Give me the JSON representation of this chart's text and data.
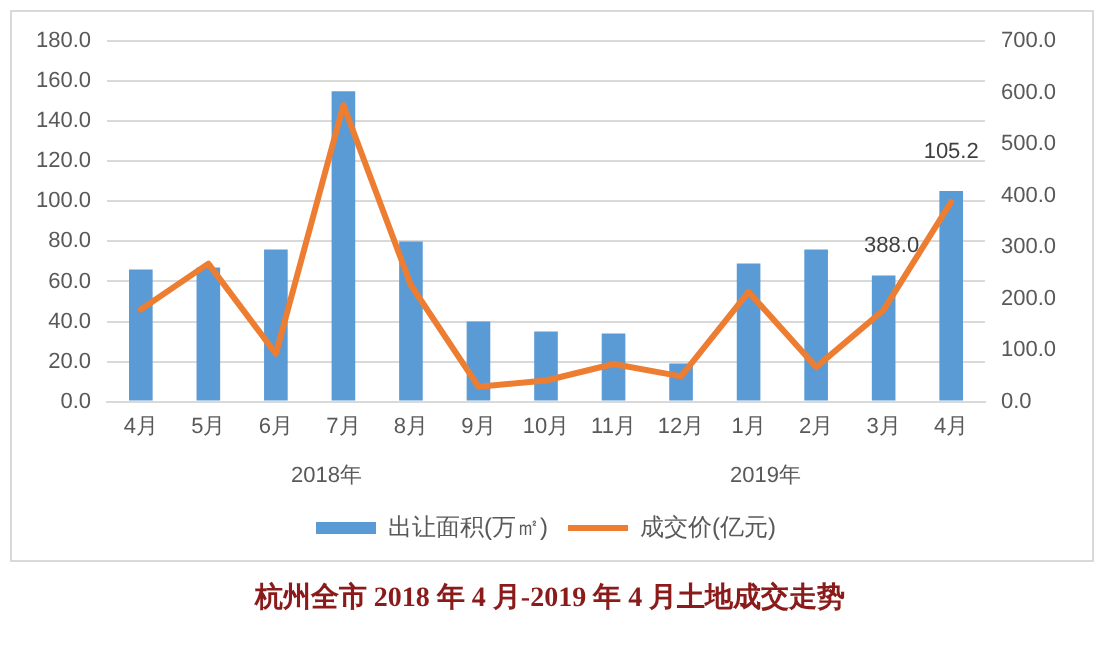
{
  "chart_data": {
    "type": "bar",
    "title": "杭州全市 2018 年 4 月-2019 年 4 月土地成交走势",
    "categories": [
      "4月",
      "5月",
      "6月",
      "7月",
      "8月",
      "9月",
      "10月",
      "11月",
      "12月",
      "1月",
      "2月",
      "3月",
      "4月"
    ],
    "series": [
      {
        "name": "出让面积(万㎡)",
        "color": "#5b9bd5",
        "values": [
          66,
          67,
          76,
          155,
          80,
          40,
          35,
          34,
          19,
          69,
          76,
          63,
          105.2
        ],
        "value_labels": [
          null,
          null,
          null,
          null,
          null,
          null,
          null,
          null,
          null,
          null,
          null,
          null,
          "105.2"
        ]
      },
      {
        "name": "成交价(亿元)",
        "type": "line",
        "axis": "y2",
        "color": "#ed7d31",
        "values": [
          179,
          268,
          93,
          576,
          226,
          29,
          41,
          73,
          49,
          213,
          67,
          178,
          388.0
        ],
        "value_labels": [
          null,
          null,
          null,
          null,
          null,
          null,
          null,
          null,
          null,
          null,
          null,
          null,
          "388.0"
        ]
      }
    ],
    "ylim": [
      0,
      180
    ],
    "yticks": [
      {
        "value": 0,
        "label": "0.0"
      },
      {
        "value": 20,
        "label": "20.0"
      },
      {
        "value": 40,
        "label": "40.0"
      },
      {
        "value": 60,
        "label": "60.0"
      },
      {
        "value": 80,
        "label": "80.0"
      },
      {
        "value": 100,
        "label": "100.0"
      },
      {
        "value": 120,
        "label": "120.0"
      },
      {
        "value": 140,
        "label": "140.0"
      },
      {
        "value": 160,
        "label": "160.0"
      },
      {
        "value": 180,
        "label": "180.0"
      }
    ],
    "y2lim": [
      0,
      700
    ],
    "y2ticks": [
      {
        "value": 0,
        "label": "0.0"
      },
      {
        "value": 100,
        "label": "100.0"
      },
      {
        "value": 200,
        "label": "200.0"
      },
      {
        "value": 300,
        "label": "300.0"
      },
      {
        "value": 400,
        "label": "400.0"
      },
      {
        "value": 500,
        "label": "500.0"
      },
      {
        "value": 600,
        "label": "600.0"
      },
      {
        "value": 700,
        "label": "700.0"
      }
    ],
    "annotations": [
      "2018年",
      "2019年"
    ],
    "grid": "y",
    "legend": "bottom",
    "line_style": "solid"
  }
}
